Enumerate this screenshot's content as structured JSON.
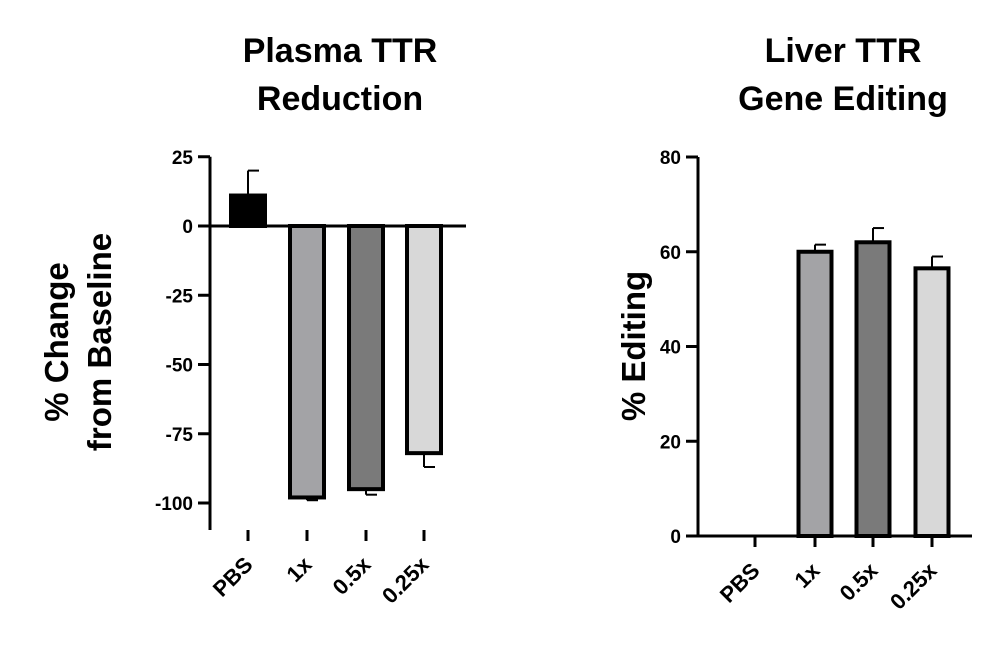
{
  "chart_data": [
    {
      "type": "bar",
      "title": [
        "Plasma TTR",
        "Reduction"
      ],
      "ylabel": [
        "% Change",
        "from Baseline"
      ],
      "categories": [
        "PBS",
        "1x",
        "0.5x",
        "0.25x"
      ],
      "values": [
        11,
        -98,
        -95,
        -82
      ],
      "errors": [
        9,
        1,
        2,
        5
      ],
      "bar_colors": [
        "#000000",
        "#a3a3a6",
        "#7a7a7a",
        "#d8d8d8"
      ],
      "ylim": [
        -110,
        25
      ],
      "yticks": [
        25,
        0,
        -25,
        -50,
        -75,
        -100
      ],
      "grid": false
    },
    {
      "type": "bar",
      "title": [
        "Liver TTR",
        "Gene  Editing"
      ],
      "ylabel": [
        "%  Editing"
      ],
      "categories": [
        "PBS",
        "1x",
        "0.5x",
        "0.25x"
      ],
      "values": [
        0,
        60,
        62,
        56.5
      ],
      "errors": [
        0,
        1.5,
        3,
        2.5
      ],
      "bar_colors": [
        "#000000",
        "#a3a3a6",
        "#7a7a7a",
        "#d8d8d8"
      ],
      "ylim": [
        0,
        80
      ],
      "yticks": [
        80,
        60,
        40,
        20,
        0
      ],
      "grid": false
    }
  ]
}
